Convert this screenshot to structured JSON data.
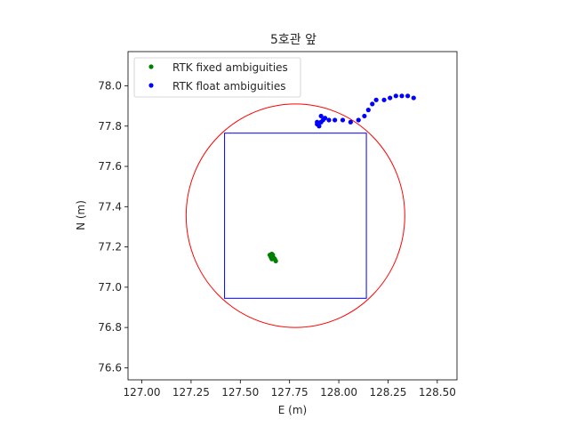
{
  "chart_data": {
    "type": "scatter",
    "title": "5호관 앞",
    "xlabel": "E (m)",
    "ylabel": "N (m)",
    "xlim": [
      126.93,
      128.6
    ],
    "ylim": [
      76.54,
      78.17
    ],
    "xticks": [
      127.0,
      127.25,
      127.5,
      127.75,
      128.0,
      128.25,
      128.5
    ],
    "xtick_labels": [
      "127.00",
      "127.25",
      "127.50",
      "127.75",
      "128.00",
      "128.25",
      "128.50"
    ],
    "yticks": [
      76.6,
      76.8,
      77.0,
      77.2,
      77.4,
      77.6,
      77.8,
      78.0
    ],
    "ytick_labels": [
      "76.6",
      "76.8",
      "77.0",
      "77.2",
      "77.4",
      "77.6",
      "77.8",
      "78.0"
    ],
    "legend_position": "top-left",
    "series": [
      {
        "name": "RTK fixed ambiguities",
        "color": "#008000",
        "points": [
          [
            127.65,
            77.16
          ],
          [
            127.66,
            77.165
          ],
          [
            127.655,
            77.155
          ],
          [
            127.665,
            77.15
          ],
          [
            127.67,
            77.145
          ],
          [
            127.66,
            77.14
          ],
          [
            127.675,
            77.14
          ],
          [
            127.68,
            77.13
          ],
          [
            127.655,
            77.15
          ],
          [
            127.665,
            77.16
          ]
        ]
      },
      {
        "name": "RTK float ambiguities",
        "color": "#0000ff",
        "points": [
          [
            127.89,
            77.81
          ],
          [
            127.9,
            77.8
          ],
          [
            127.91,
            77.85
          ],
          [
            127.91,
            77.82
          ],
          [
            127.92,
            77.83
          ],
          [
            127.93,
            77.84
          ],
          [
            127.95,
            77.83
          ],
          [
            127.89,
            77.82
          ],
          [
            127.98,
            77.83
          ],
          [
            128.02,
            77.83
          ],
          [
            128.06,
            77.82
          ],
          [
            128.1,
            77.83
          ],
          [
            128.13,
            77.85
          ],
          [
            128.15,
            77.88
          ],
          [
            128.17,
            77.91
          ],
          [
            128.19,
            77.93
          ],
          [
            128.23,
            77.93
          ],
          [
            128.26,
            77.94
          ],
          [
            128.29,
            77.95
          ],
          [
            128.32,
            77.95
          ],
          [
            128.35,
            77.95
          ],
          [
            128.38,
            77.94
          ]
        ]
      }
    ],
    "shapes": [
      {
        "kind": "circle",
        "color": "#ff0000",
        "center": [
          127.78,
          77.355
        ],
        "radius": 0.555
      },
      {
        "kind": "rectangle",
        "color": "#0000ff",
        "x_range": [
          127.42,
          128.14
        ],
        "y_range": [
          76.945,
          77.765
        ]
      }
    ]
  }
}
